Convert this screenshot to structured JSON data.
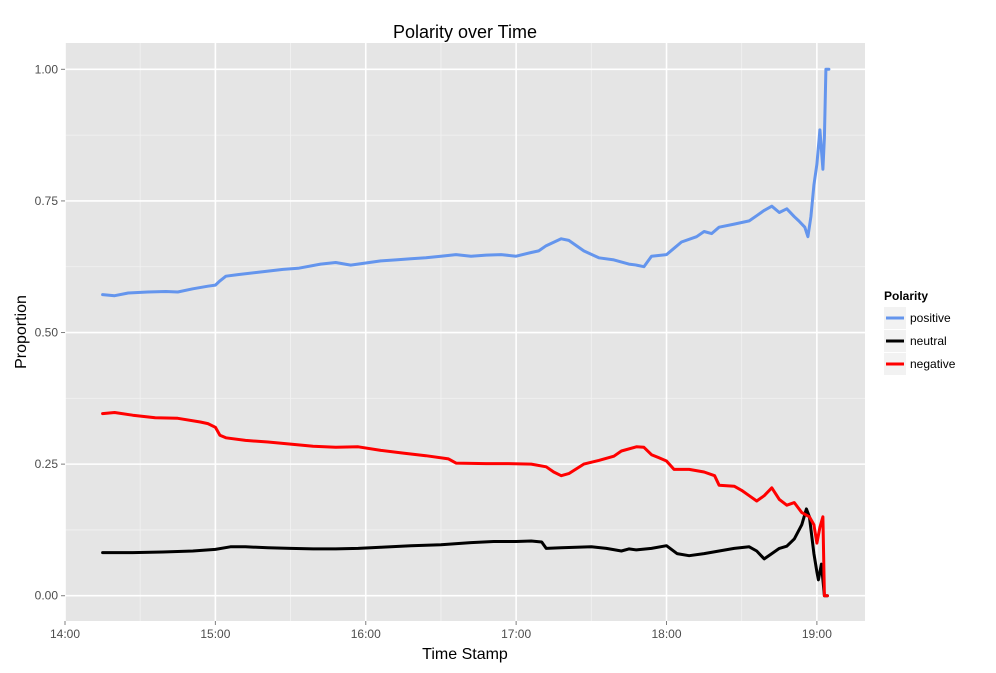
{
  "chart_data": {
    "type": "line",
    "title": "Polarity over Time",
    "xlabel": "Time Stamp",
    "ylabel": "Proportion",
    "xlim": [
      14.0,
      19.32
    ],
    "ylim": [
      -0.048,
      1.05
    ],
    "x_ticks": [
      {
        "value": 14,
        "label": "14:00"
      },
      {
        "value": 15,
        "label": "15:00"
      },
      {
        "value": 16,
        "label": "16:00"
      },
      {
        "value": 17,
        "label": "17:00"
      },
      {
        "value": 18,
        "label": "18:00"
      },
      {
        "value": 19,
        "label": "19:00"
      }
    ],
    "y_ticks": [
      {
        "value": 0,
        "label": "0.00"
      },
      {
        "value": 0.25,
        "label": "0.25"
      },
      {
        "value": 0.5,
        "label": "0.50"
      },
      {
        "value": 0.75,
        "label": "0.75"
      },
      {
        "value": 1,
        "label": "1.00"
      }
    ],
    "grid": true,
    "legend": {
      "title": "Polarity",
      "position": "right"
    },
    "series": [
      {
        "name": "positive",
        "color": "#6495ED",
        "points": [
          [
            14.25,
            0.572
          ],
          [
            14.33,
            0.57
          ],
          [
            14.42,
            0.575
          ],
          [
            14.55,
            0.577
          ],
          [
            14.67,
            0.578
          ],
          [
            14.75,
            0.577
          ],
          [
            14.85,
            0.583
          ],
          [
            14.95,
            0.588
          ],
          [
            15.0,
            0.59
          ],
          [
            15.03,
            0.598
          ],
          [
            15.07,
            0.607
          ],
          [
            15.15,
            0.61
          ],
          [
            15.3,
            0.615
          ],
          [
            15.45,
            0.62
          ],
          [
            15.55,
            0.622
          ],
          [
            15.7,
            0.63
          ],
          [
            15.8,
            0.633
          ],
          [
            15.9,
            0.628
          ],
          [
            16.0,
            0.632
          ],
          [
            16.1,
            0.636
          ],
          [
            16.2,
            0.638
          ],
          [
            16.3,
            0.64
          ],
          [
            16.4,
            0.642
          ],
          [
            16.5,
            0.645
          ],
          [
            16.6,
            0.648
          ],
          [
            16.7,
            0.645
          ],
          [
            16.8,
            0.647
          ],
          [
            16.9,
            0.648
          ],
          [
            17.0,
            0.645
          ],
          [
            17.1,
            0.652
          ],
          [
            17.15,
            0.655
          ],
          [
            17.2,
            0.665
          ],
          [
            17.3,
            0.678
          ],
          [
            17.35,
            0.675
          ],
          [
            17.45,
            0.655
          ],
          [
            17.55,
            0.642
          ],
          [
            17.65,
            0.638
          ],
          [
            17.75,
            0.63
          ],
          [
            17.8,
            0.628
          ],
          [
            17.85,
            0.625
          ],
          [
            17.9,
            0.645
          ],
          [
            18.0,
            0.648
          ],
          [
            18.05,
            0.66
          ],
          [
            18.1,
            0.672
          ],
          [
            18.2,
            0.682
          ],
          [
            18.25,
            0.692
          ],
          [
            18.3,
            0.688
          ],
          [
            18.35,
            0.7
          ],
          [
            18.45,
            0.706
          ],
          [
            18.55,
            0.712
          ],
          [
            18.6,
            0.722
          ],
          [
            18.65,
            0.732
          ],
          [
            18.7,
            0.74
          ],
          [
            18.75,
            0.728
          ],
          [
            18.8,
            0.735
          ],
          [
            18.85,
            0.72
          ],
          [
            18.88,
            0.712
          ],
          [
            18.92,
            0.7
          ],
          [
            18.94,
            0.682
          ],
          [
            18.96,
            0.72
          ],
          [
            18.98,
            0.78
          ],
          [
            19.0,
            0.82
          ],
          [
            19.02,
            0.885
          ],
          [
            19.04,
            0.81
          ],
          [
            19.05,
            0.87
          ],
          [
            19.06,
            1.0
          ],
          [
            19.08,
            1.0
          ]
        ]
      },
      {
        "name": "neutral",
        "color": "#000000",
        "points": [
          [
            14.25,
            0.082
          ],
          [
            14.45,
            0.082
          ],
          [
            14.65,
            0.083
          ],
          [
            14.85,
            0.085
          ],
          [
            15.0,
            0.088
          ],
          [
            15.1,
            0.093
          ],
          [
            15.2,
            0.093
          ],
          [
            15.35,
            0.091
          ],
          [
            15.5,
            0.09
          ],
          [
            15.65,
            0.089
          ],
          [
            15.8,
            0.089
          ],
          [
            15.95,
            0.09
          ],
          [
            16.1,
            0.092
          ],
          [
            16.3,
            0.095
          ],
          [
            16.5,
            0.097
          ],
          [
            16.7,
            0.101
          ],
          [
            16.85,
            0.103
          ],
          [
            17.0,
            0.103
          ],
          [
            17.1,
            0.104
          ],
          [
            17.17,
            0.102
          ],
          [
            17.2,
            0.09
          ],
          [
            17.3,
            0.091
          ],
          [
            17.4,
            0.092
          ],
          [
            17.5,
            0.093
          ],
          [
            17.6,
            0.09
          ],
          [
            17.7,
            0.085
          ],
          [
            17.75,
            0.089
          ],
          [
            17.8,
            0.087
          ],
          [
            17.9,
            0.09
          ],
          [
            18.0,
            0.095
          ],
          [
            18.07,
            0.08
          ],
          [
            18.15,
            0.076
          ],
          [
            18.25,
            0.08
          ],
          [
            18.35,
            0.085
          ],
          [
            18.45,
            0.09
          ],
          [
            18.55,
            0.093
          ],
          [
            18.6,
            0.085
          ],
          [
            18.65,
            0.07
          ],
          [
            18.7,
            0.08
          ],
          [
            18.75,
            0.09
          ],
          [
            18.8,
            0.094
          ],
          [
            18.85,
            0.108
          ],
          [
            18.9,
            0.135
          ],
          [
            18.93,
            0.165
          ],
          [
            18.95,
            0.15
          ],
          [
            18.98,
            0.08
          ],
          [
            19.0,
            0.045
          ],
          [
            19.01,
            0.03
          ],
          [
            19.03,
            0.06
          ],
          [
            19.05,
            0.0
          ],
          [
            19.07,
            0.0
          ]
        ]
      },
      {
        "name": "negative",
        "color": "#FF0000",
        "points": [
          [
            14.25,
            0.346
          ],
          [
            14.33,
            0.348
          ],
          [
            14.45,
            0.343
          ],
          [
            14.6,
            0.338
          ],
          [
            14.75,
            0.337
          ],
          [
            14.9,
            0.33
          ],
          [
            14.95,
            0.327
          ],
          [
            15.0,
            0.32
          ],
          [
            15.03,
            0.305
          ],
          [
            15.07,
            0.3
          ],
          [
            15.2,
            0.295
          ],
          [
            15.35,
            0.292
          ],
          [
            15.5,
            0.288
          ],
          [
            15.65,
            0.284
          ],
          [
            15.8,
            0.282
          ],
          [
            15.95,
            0.283
          ],
          [
            16.1,
            0.276
          ],
          [
            16.25,
            0.271
          ],
          [
            16.4,
            0.266
          ],
          [
            16.55,
            0.26
          ],
          [
            16.6,
            0.252
          ],
          [
            16.8,
            0.251
          ],
          [
            16.95,
            0.251
          ],
          [
            17.1,
            0.25
          ],
          [
            17.2,
            0.245
          ],
          [
            17.25,
            0.235
          ],
          [
            17.3,
            0.228
          ],
          [
            17.35,
            0.232
          ],
          [
            17.45,
            0.25
          ],
          [
            17.55,
            0.257
          ],
          [
            17.65,
            0.265
          ],
          [
            17.7,
            0.275
          ],
          [
            17.8,
            0.283
          ],
          [
            17.85,
            0.282
          ],
          [
            17.9,
            0.268
          ],
          [
            17.95,
            0.262
          ],
          [
            18.0,
            0.256
          ],
          [
            18.05,
            0.24
          ],
          [
            18.15,
            0.24
          ],
          [
            18.25,
            0.235
          ],
          [
            18.32,
            0.228
          ],
          [
            18.35,
            0.21
          ],
          [
            18.45,
            0.208
          ],
          [
            18.5,
            0.2
          ],
          [
            18.55,
            0.19
          ],
          [
            18.6,
            0.18
          ],
          [
            18.65,
            0.19
          ],
          [
            18.7,
            0.205
          ],
          [
            18.75,
            0.183
          ],
          [
            18.8,
            0.172
          ],
          [
            18.85,
            0.177
          ],
          [
            18.9,
            0.158
          ],
          [
            18.95,
            0.15
          ],
          [
            18.98,
            0.135
          ],
          [
            19.0,
            0.1
          ],
          [
            19.02,
            0.13
          ],
          [
            19.04,
            0.15
          ],
          [
            19.05,
            0.0
          ],
          [
            19.07,
            0.0
          ]
        ]
      }
    ]
  }
}
